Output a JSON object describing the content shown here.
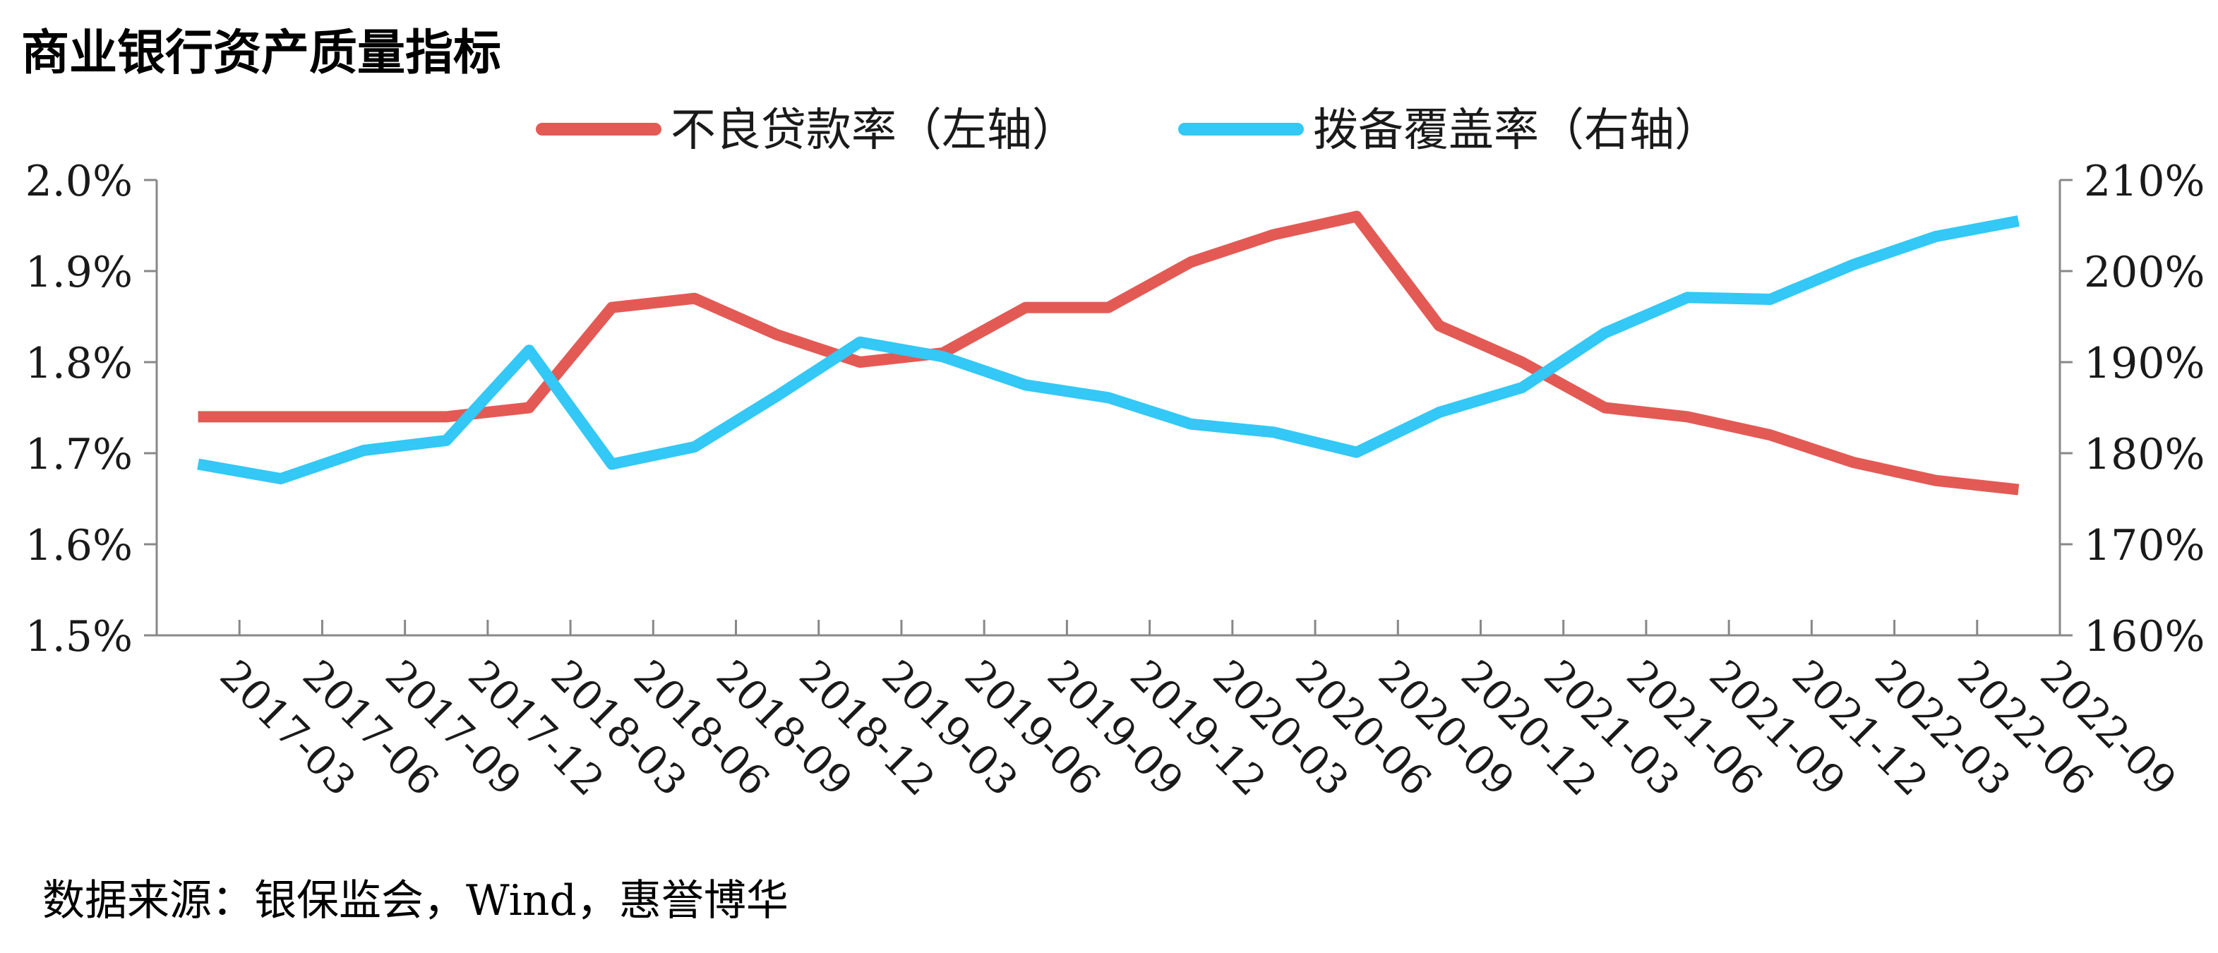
{
  "chart_data": {
    "type": "line",
    "title": "商业银行资产质量指标",
    "source": "数据来源：银保监会，Wind，惠誉博华",
    "categories": [
      "2017-03",
      "2017-06",
      "2017-09",
      "2017-12",
      "2018-03",
      "2018-06",
      "2018-09",
      "2018-12",
      "2019-03",
      "2019-06",
      "2019-09",
      "2019-12",
      "2020-03",
      "2020-06",
      "2020-09",
      "2020-12",
      "2021-03",
      "2021-06",
      "2021-09",
      "2021-12",
      "2022-03",
      "2022-06",
      "2022-09"
    ],
    "y_left": {
      "ticks": [
        "1.5%",
        "1.6%",
        "1.7%",
        "1.8%",
        "1.9%",
        "2.0%"
      ],
      "range": [
        1.5,
        2.0
      ]
    },
    "y_right": {
      "ticks": [
        "160%",
        "170%",
        "180%",
        "190%",
        "200%",
        "210%"
      ],
      "range": [
        160,
        210
      ]
    },
    "series": [
      {
        "name": "不良贷款率（左轴）",
        "axis": "left",
        "color": "#e35a55",
        "values": [
          1.74,
          1.74,
          1.74,
          1.74,
          1.75,
          1.86,
          1.87,
          1.83,
          1.8,
          1.81,
          1.86,
          1.86,
          1.91,
          1.94,
          1.96,
          1.84,
          1.8,
          1.75,
          1.74,
          1.72,
          1.69,
          1.67,
          1.66
        ]
      },
      {
        "name": "拨备覆盖率（右轴）",
        "axis": "right",
        "color": "#33c8f5",
        "values": [
          178.8,
          177.2,
          180.3,
          181.4,
          191.3,
          178.8,
          180.7,
          186.3,
          192.2,
          190.6,
          187.5,
          186.1,
          183.2,
          182.3,
          180.1,
          184.5,
          187.2,
          193.2,
          197.1,
          196.9,
          200.7,
          203.8,
          205.5
        ]
      }
    ]
  }
}
